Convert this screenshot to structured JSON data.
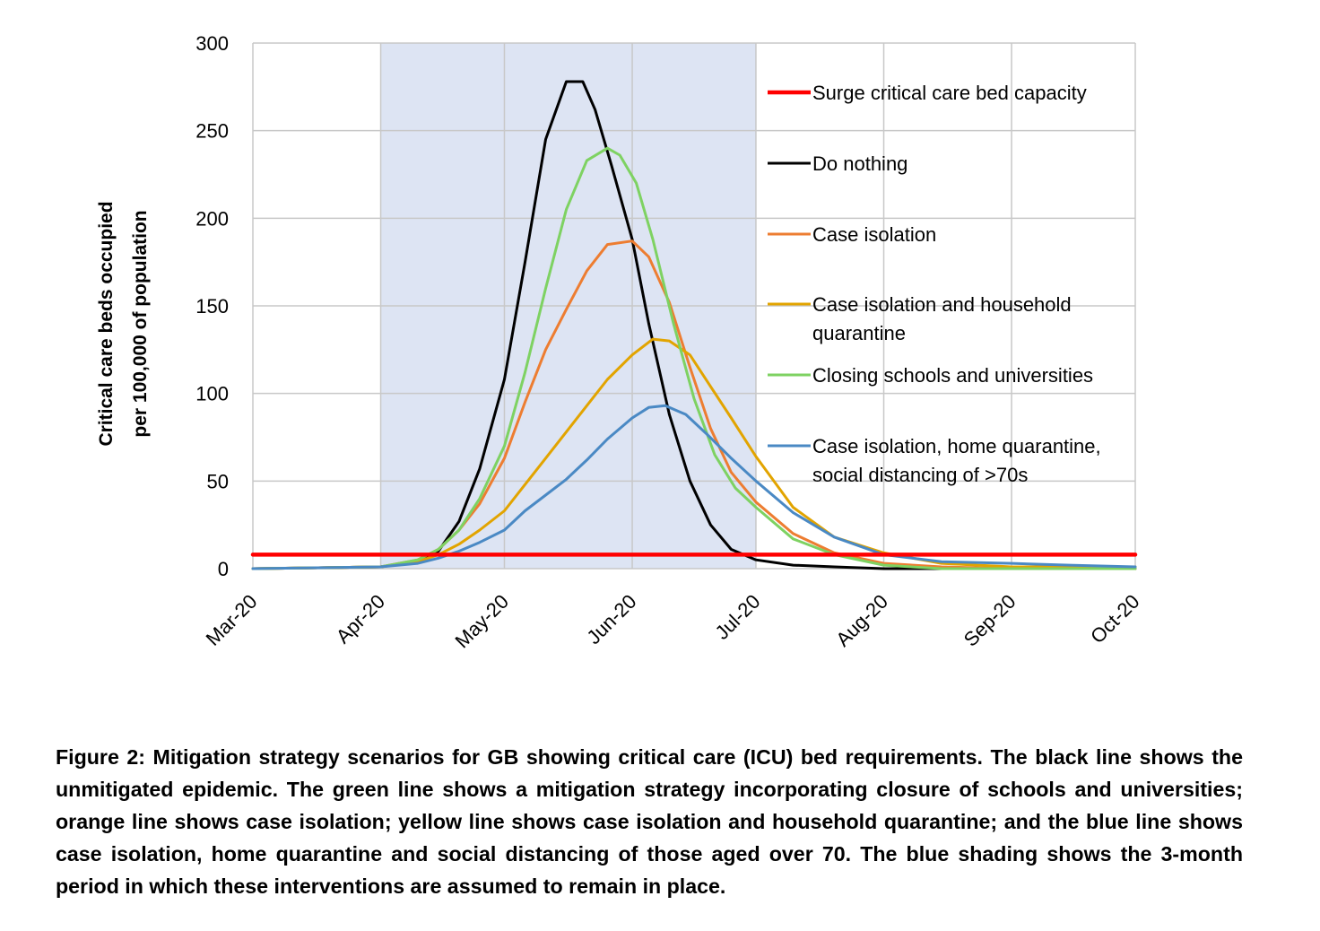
{
  "chart_data": {
    "type": "line",
    "ylabel_lines": [
      "Critical care beds occupied",
      "per 100,000 of population"
    ],
    "ylim": [
      0,
      300
    ],
    "yticks": [
      "0",
      "50",
      "100",
      "150",
      "200",
      "250",
      "300"
    ],
    "xlim": [
      "2020-03-01",
      "2020-10-01"
    ],
    "xticks": [
      {
        "date": "2020-03-01",
        "label": "Mar-20"
      },
      {
        "date": "2020-04-01",
        "label": "Apr-20"
      },
      {
        "date": "2020-05-01",
        "label": "May-20"
      },
      {
        "date": "2020-06-01",
        "label": "Jun-20"
      },
      {
        "date": "2020-07-01",
        "label": "Jul-20"
      },
      {
        "date": "2020-08-01",
        "label": "Aug-20"
      },
      {
        "date": "2020-09-01",
        "label": "Sep-20"
      },
      {
        "date": "2020-10-01",
        "label": "Oct-20"
      }
    ],
    "grid": true,
    "legend_position": "right",
    "shaded_period": {
      "start": "2020-04-01",
      "end": "2020-07-01",
      "color": "#dde4f3"
    },
    "series": [
      {
        "name": "Surge critical care bed capacity",
        "color": "#ff0000",
        "x": [
          "2020-03-01",
          "2020-10-01"
        ],
        "values": [
          8,
          8
        ]
      },
      {
        "name": "Do nothing",
        "color": "#000000",
        "x": [
          "2020-03-01",
          "2020-04-01",
          "2020-04-10",
          "2020-04-15",
          "2020-04-20",
          "2020-04-25",
          "2020-05-01",
          "2020-05-06",
          "2020-05-11",
          "2020-05-16",
          "2020-05-20",
          "2020-05-23",
          "2020-05-27",
          "2020-06-01",
          "2020-06-05",
          "2020-06-10",
          "2020-06-15",
          "2020-06-20",
          "2020-06-25",
          "2020-07-01",
          "2020-07-10",
          "2020-07-20",
          "2020-08-01",
          "2020-08-15",
          "2020-10-01"
        ],
        "values": [
          0,
          1,
          4,
          10,
          27,
          57,
          108,
          175,
          245,
          278,
          278,
          262,
          230,
          188,
          140,
          88,
          50,
          25,
          11,
          5,
          2,
          1,
          0,
          0,
          0
        ]
      },
      {
        "name": "Case isolation",
        "color": "#ed7d31",
        "x": [
          "2020-03-01",
          "2020-04-01",
          "2020-04-10",
          "2020-04-15",
          "2020-04-20",
          "2020-04-25",
          "2020-05-01",
          "2020-05-06",
          "2020-05-11",
          "2020-05-16",
          "2020-05-21",
          "2020-05-26",
          "2020-06-01",
          "2020-06-05",
          "2020-06-10",
          "2020-06-15",
          "2020-06-20",
          "2020-06-25",
          "2020-07-01",
          "2020-07-10",
          "2020-07-20",
          "2020-08-01",
          "2020-08-15",
          "2020-09-01",
          "2020-10-01"
        ],
        "values": [
          0,
          1,
          5,
          11,
          22,
          37,
          63,
          95,
          125,
          148,
          170,
          185,
          187,
          178,
          152,
          115,
          80,
          55,
          38,
          20,
          9,
          3,
          1,
          0,
          0
        ]
      },
      {
        "name": "Case isolation and household quarantine",
        "color": "#e2a400",
        "x": [
          "2020-03-01",
          "2020-04-01",
          "2020-04-10",
          "2020-04-15",
          "2020-04-20",
          "2020-04-25",
          "2020-05-01",
          "2020-05-06",
          "2020-05-11",
          "2020-05-16",
          "2020-05-21",
          "2020-05-26",
          "2020-06-01",
          "2020-06-06",
          "2020-06-10",
          "2020-06-15",
          "2020-06-20",
          "2020-06-25",
          "2020-07-01",
          "2020-07-10",
          "2020-07-20",
          "2020-08-01",
          "2020-08-15",
          "2020-09-01",
          "2020-10-01"
        ],
        "values": [
          0,
          1,
          4,
          8,
          14,
          22,
          33,
          48,
          63,
          78,
          93,
          108,
          122,
          131,
          130,
          122,
          104,
          86,
          64,
          35,
          18,
          9,
          3,
          1,
          1
        ]
      },
      {
        "name": "Closing schools and universities",
        "color": "#7ed262",
        "x": [
          "2020-03-01",
          "2020-04-01",
          "2020-04-10",
          "2020-04-15",
          "2020-04-20",
          "2020-04-25",
          "2020-05-01",
          "2020-05-06",
          "2020-05-11",
          "2020-05-16",
          "2020-05-21",
          "2020-05-26",
          "2020-05-29",
          "2020-06-02",
          "2020-06-06",
          "2020-06-11",
          "2020-06-16",
          "2020-06-21",
          "2020-06-26",
          "2020-07-01",
          "2020-07-10",
          "2020-07-20",
          "2020-08-01",
          "2020-08-15",
          "2020-10-01"
        ],
        "values": [
          0,
          1,
          5,
          11,
          22,
          40,
          70,
          112,
          160,
          205,
          233,
          240,
          236,
          220,
          188,
          140,
          97,
          65,
          46,
          35,
          17,
          8,
          2,
          0,
          0
        ]
      },
      {
        "name": "Case isolation, home quarantine, social distancing of >70s",
        "color": "#4a89c4",
        "x": [
          "2020-03-01",
          "2020-04-01",
          "2020-04-10",
          "2020-04-15",
          "2020-04-20",
          "2020-04-25",
          "2020-05-01",
          "2020-05-06",
          "2020-05-11",
          "2020-05-16",
          "2020-05-21",
          "2020-05-26",
          "2020-06-01",
          "2020-06-05",
          "2020-06-09",
          "2020-06-14",
          "2020-06-19",
          "2020-06-25",
          "2020-07-01",
          "2020-07-10",
          "2020-07-20",
          "2020-08-01",
          "2020-08-15",
          "2020-09-01",
          "2020-09-15",
          "2020-10-01"
        ],
        "values": [
          0,
          1,
          3,
          6,
          10,
          15,
          22,
          33,
          42,
          51,
          62,
          74,
          86,
          92,
          93,
          88,
          77,
          63,
          50,
          32,
          18,
          8,
          4,
          3,
          2,
          1
        ]
      }
    ],
    "legend_labels": [
      [
        "Surge critical care bed capacity"
      ],
      [
        "Do nothing"
      ],
      [
        "Case isolation"
      ],
      [
        "Case isolation and household",
        "quarantine"
      ],
      [
        "Closing schools and universities"
      ],
      [
        "Case isolation, home quarantine,",
        "social distancing of >70s"
      ]
    ]
  },
  "caption": "Figure 2: Mitigation strategy scenarios for GB showing critical care (ICU) bed requirements. The black line shows the unmitigated epidemic. The green line shows a mitigation strategy incorporating closure of schools and universities; orange line shows case isolation; yellow line shows case isolation and household quarantine; and the blue line shows case isolation, home quarantine and social distancing of those aged over 70. The blue shading shows the 3-month period in which these interventions are assumed to remain in place."
}
